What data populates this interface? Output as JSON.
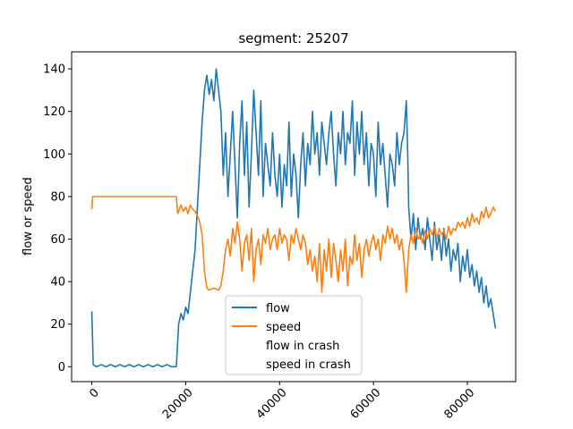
{
  "chart_data": {
    "type": "line",
    "title": "segment: 25207",
    "xlabel": "",
    "ylabel": "flow or speed",
    "xlim": [
      -4300,
      90300
    ],
    "ylim": [
      -7,
      148
    ],
    "xticks": [
      0,
      20000,
      40000,
      60000,
      80000
    ],
    "xtick_labels": [
      "0",
      "20000",
      "40000",
      "60000",
      "80000"
    ],
    "yticks": [
      0,
      20,
      40,
      60,
      80,
      100,
      120,
      140
    ],
    "ytick_labels": [
      "0",
      "20",
      "40",
      "60",
      "80",
      "100",
      "120",
      "140"
    ],
    "grid": false,
    "legend_position": "lower center",
    "series": [
      {
        "name": "flow",
        "color": "#1f77b4",
        "points": [
          [
            0,
            26
          ],
          [
            300,
            1
          ],
          [
            1000,
            0
          ],
          [
            2000,
            1
          ],
          [
            3000,
            0
          ],
          [
            4000,
            1
          ],
          [
            5000,
            0
          ],
          [
            6000,
            1
          ],
          [
            7000,
            0
          ],
          [
            8000,
            1
          ],
          [
            9000,
            0
          ],
          [
            10000,
            1
          ],
          [
            11000,
            0
          ],
          [
            12000,
            1
          ],
          [
            13000,
            0
          ],
          [
            14000,
            1
          ],
          [
            15000,
            0
          ],
          [
            16000,
            1
          ],
          [
            17000,
            0
          ],
          [
            18000,
            0
          ],
          [
            18500,
            20
          ],
          [
            19000,
            25
          ],
          [
            19500,
            22
          ],
          [
            20000,
            28
          ],
          [
            20500,
            25
          ],
          [
            21000,
            35
          ],
          [
            21500,
            45
          ],
          [
            22000,
            55
          ],
          [
            22500,
            75
          ],
          [
            23000,
            95
          ],
          [
            23500,
            115
          ],
          [
            24000,
            130
          ],
          [
            24500,
            137
          ],
          [
            25000,
            128
          ],
          [
            25500,
            135
          ],
          [
            26000,
            125
          ],
          [
            26500,
            140
          ],
          [
            27000,
            130
          ],
          [
            27500,
            120
          ],
          [
            28000,
            90
          ],
          [
            28500,
            110
          ],
          [
            29000,
            80
          ],
          [
            29500,
            100
          ],
          [
            30000,
            120
          ],
          [
            30500,
            95
          ],
          [
            31000,
            70
          ],
          [
            31500,
            105
          ],
          [
            32000,
            125
          ],
          [
            32500,
            90
          ],
          [
            33000,
            115
          ],
          [
            33500,
            75
          ],
          [
            34000,
            100
          ],
          [
            34500,
            130
          ],
          [
            35000,
            110
          ],
          [
            35500,
            90
          ],
          [
            36000,
            125
          ],
          [
            36500,
            80
          ],
          [
            37000,
            105
          ],
          [
            37500,
            95
          ],
          [
            38000,
            85
          ],
          [
            38500,
            110
          ],
          [
            39000,
            90
          ],
          [
            39500,
            80
          ],
          [
            40000,
            100
          ],
          [
            40500,
            75
          ],
          [
            41000,
            95
          ],
          [
            41500,
            85
          ],
          [
            42000,
            115
          ],
          [
            42500,
            80
          ],
          [
            43000,
            100
          ],
          [
            43500,
            90
          ],
          [
            44000,
            70
          ],
          [
            44500,
            95
          ],
          [
            45000,
            110
          ],
          [
            45500,
            85
          ],
          [
            46000,
            105
          ],
          [
            46500,
            95
          ],
          [
            47000,
            120
          ],
          [
            47500,
            100
          ],
          [
            48000,
            110
          ],
          [
            48500,
            90
          ],
          [
            49000,
            115
          ],
          [
            49500,
            105
          ],
          [
            50000,
            95
          ],
          [
            50500,
            110
          ],
          [
            51000,
            120
          ],
          [
            51500,
            100
          ],
          [
            52000,
            85
          ],
          [
            52500,
            110
          ],
          [
            53000,
            100
          ],
          [
            53500,
            120
          ],
          [
            54000,
            95
          ],
          [
            54500,
            110
          ],
          [
            55000,
            105
          ],
          [
            55500,
            125
          ],
          [
            56000,
            90
          ],
          [
            56500,
            115
          ],
          [
            57000,
            100
          ],
          [
            57500,
            120
          ],
          [
            58000,
            95
          ],
          [
            58500,
            110
          ],
          [
            59000,
            85
          ],
          [
            59500,
            105
          ],
          [
            60000,
            100
          ],
          [
            60500,
            80
          ],
          [
            61000,
            115
          ],
          [
            61500,
            95
          ],
          [
            62000,
            105
          ],
          [
            62500,
            90
          ],
          [
            63000,
            75
          ],
          [
            63500,
            100
          ],
          [
            64000,
            95
          ],
          [
            64500,
            85
          ],
          [
            65000,
            110
          ],
          [
            65500,
            95
          ],
          [
            66000,
            105
          ],
          [
            66500,
            110
          ],
          [
            67000,
            125
          ],
          [
            67300,
            100
          ],
          [
            67500,
            75
          ],
          [
            68000,
            60
          ],
          [
            68500,
            72
          ],
          [
            69000,
            55
          ],
          [
            69500,
            70
          ],
          [
            70000,
            60
          ],
          [
            70500,
            65
          ],
          [
            71000,
            55
          ],
          [
            71500,
            70
          ],
          [
            72000,
            60
          ],
          [
            72500,
            50
          ],
          [
            73000,
            68
          ],
          [
            73500,
            55
          ],
          [
            74000,
            62
          ],
          [
            74500,
            50
          ],
          [
            75000,
            65
          ],
          [
            75500,
            52
          ],
          [
            76000,
            60
          ],
          [
            76500,
            45
          ],
          [
            77000,
            55
          ],
          [
            77500,
            50
          ],
          [
            78000,
            58
          ],
          [
            78500,
            40
          ],
          [
            79000,
            52
          ],
          [
            79500,
            45
          ],
          [
            80000,
            55
          ],
          [
            80500,
            42
          ],
          [
            81000,
            48
          ],
          [
            81500,
            38
          ],
          [
            82000,
            45
          ],
          [
            82500,
            35
          ],
          [
            83000,
            42
          ],
          [
            83500,
            30
          ],
          [
            84000,
            38
          ],
          [
            84500,
            28
          ],
          [
            85000,
            32
          ],
          [
            85500,
            25
          ],
          [
            86000,
            18
          ]
        ]
      },
      {
        "name": "speed",
        "color": "#ff7f0e",
        "points": [
          [
            0,
            74
          ],
          [
            200,
            80
          ],
          [
            2000,
            80
          ],
          [
            4000,
            80
          ],
          [
            6000,
            80
          ],
          [
            8000,
            80
          ],
          [
            10000,
            80
          ],
          [
            12000,
            80
          ],
          [
            14000,
            80
          ],
          [
            16000,
            80
          ],
          [
            18000,
            80
          ],
          [
            18300,
            72
          ],
          [
            19000,
            76
          ],
          [
            19500,
            73
          ],
          [
            20000,
            75
          ],
          [
            20500,
            72
          ],
          [
            21000,
            76
          ],
          [
            21500,
            74
          ],
          [
            22000,
            73
          ],
          [
            22500,
            71
          ],
          [
            23000,
            68
          ],
          [
            23500,
            62
          ],
          [
            24000,
            45
          ],
          [
            24500,
            37
          ],
          [
            25000,
            36
          ],
          [
            26000,
            37
          ],
          [
            27000,
            36
          ],
          [
            27500,
            38
          ],
          [
            28000,
            45
          ],
          [
            28500,
            55
          ],
          [
            29000,
            60
          ],
          [
            29500,
            52
          ],
          [
            30000,
            65
          ],
          [
            30500,
            58
          ],
          [
            31000,
            68
          ],
          [
            31500,
            60
          ],
          [
            32000,
            45
          ],
          [
            32500,
            58
          ],
          [
            33000,
            62
          ],
          [
            33500,
            50
          ],
          [
            34000,
            65
          ],
          [
            34500,
            40
          ],
          [
            35000,
            55
          ],
          [
            35500,
            60
          ],
          [
            36000,
            48
          ],
          [
            36500,
            62
          ],
          [
            37000,
            58
          ],
          [
            37500,
            65
          ],
          [
            38000,
            55
          ],
          [
            38500,
            60
          ],
          [
            39000,
            62
          ],
          [
            39500,
            55
          ],
          [
            40000,
            65
          ],
          [
            40500,
            58
          ],
          [
            41000,
            62
          ],
          [
            41500,
            60
          ],
          [
            42000,
            50
          ],
          [
            42500,
            62
          ],
          [
            43000,
            58
          ],
          [
            43500,
            65
          ],
          [
            44000,
            60
          ],
          [
            44500,
            55
          ],
          [
            45000,
            62
          ],
          [
            45500,
            58
          ],
          [
            46000,
            48
          ],
          [
            46500,
            55
          ],
          [
            47000,
            45
          ],
          [
            47500,
            52
          ],
          [
            48000,
            40
          ],
          [
            48500,
            58
          ],
          [
            49000,
            35
          ],
          [
            49500,
            55
          ],
          [
            50000,
            45
          ],
          [
            50500,
            60
          ],
          [
            51000,
            42
          ],
          [
            51500,
            58
          ],
          [
            52000,
            50
          ],
          [
            52500,
            40
          ],
          [
            53000,
            55
          ],
          [
            53500,
            45
          ],
          [
            54000,
            60
          ],
          [
            54500,
            38
          ],
          [
            55000,
            52
          ],
          [
            55500,
            48
          ],
          [
            56000,
            62
          ],
          [
            56500,
            50
          ],
          [
            57000,
            58
          ],
          [
            57500,
            42
          ],
          [
            58000,
            55
          ],
          [
            58500,
            60
          ],
          [
            59000,
            52
          ],
          [
            59500,
            58
          ],
          [
            60000,
            62
          ],
          [
            60500,
            55
          ],
          [
            61000,
            60
          ],
          [
            61500,
            50
          ],
          [
            62000,
            62
          ],
          [
            62500,
            58
          ],
          [
            63000,
            66
          ],
          [
            63500,
            60
          ],
          [
            64000,
            65
          ],
          [
            64500,
            58
          ],
          [
            65000,
            62
          ],
          [
            65500,
            55
          ],
          [
            66000,
            60
          ],
          [
            66500,
            50
          ],
          [
            67000,
            35
          ],
          [
            67500,
            55
          ],
          [
            68000,
            62
          ],
          [
            68500,
            58
          ],
          [
            69000,
            65
          ],
          [
            69500,
            60
          ],
          [
            70000,
            62
          ],
          [
            70500,
            58
          ],
          [
            71000,
            64
          ],
          [
            71500,
            60
          ],
          [
            72000,
            65
          ],
          [
            72500,
            62
          ],
          [
            73000,
            66
          ],
          [
            73500,
            60
          ],
          [
            74000,
            65
          ],
          [
            74500,
            62
          ],
          [
            75000,
            64
          ],
          [
            75500,
            60
          ],
          [
            76000,
            66
          ],
          [
            76500,
            62
          ],
          [
            77000,
            65
          ],
          [
            77500,
            64
          ],
          [
            78000,
            68
          ],
          [
            78500,
            66
          ],
          [
            79000,
            68
          ],
          [
            79500,
            65
          ],
          [
            80000,
            70
          ],
          [
            80500,
            66
          ],
          [
            81000,
            72
          ],
          [
            81500,
            68
          ],
          [
            82000,
            70
          ],
          [
            82500,
            67
          ],
          [
            83000,
            73
          ],
          [
            83500,
            70
          ],
          [
            84000,
            75
          ],
          [
            84500,
            70
          ],
          [
            85000,
            72
          ],
          [
            85500,
            75
          ],
          [
            86000,
            73
          ]
        ]
      }
    ],
    "legend_entries": [
      {
        "label": "flow",
        "color": "#1f77b4"
      },
      {
        "label": "speed",
        "color": "#ff7f0e"
      },
      {
        "label": "flow in crash",
        "color": "none"
      },
      {
        "label": "speed in crash",
        "color": "none"
      }
    ]
  }
}
